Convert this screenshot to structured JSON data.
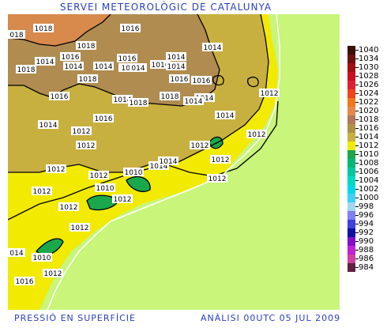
{
  "header": {
    "title": "SERVEI METEOROLÒGIC DE CATALUNYA"
  },
  "footer": {
    "left": "PRESSIÓ EN SUPERFÍCIE",
    "right": "ANÀLISI 00UTC 05 JUL 2009"
  },
  "colors": {
    "sea": "#c8f57a",
    "band_1012": "#f2ea00",
    "band_1014": "#c8b040",
    "band_1016": "#b08c50",
    "band_1018": "#d8894c",
    "band_1010": "#1ba84a",
    "coast": "#ffffff"
  },
  "legend": [
    {
      "label": "1040",
      "color": "#3a1008"
    },
    {
      "label": "1034",
      "color": "#6e1010"
    },
    {
      "label": "1030",
      "color": "#a01010"
    },
    {
      "label": "1028",
      "color": "#c81020"
    },
    {
      "label": "1026",
      "color": "#e02030"
    },
    {
      "label": "1024",
      "color": "#ee4418"
    },
    {
      "label": "1022",
      "color": "#f07818"
    },
    {
      "label": "1020",
      "color": "#e88848"
    },
    {
      "label": "1018",
      "color": "#b07858"
    },
    {
      "label": "1016",
      "color": "#b09048"
    },
    {
      "label": "1014",
      "color": "#c8b040"
    },
    {
      "label": "1012",
      "color": "#f2ea00"
    },
    {
      "label": "1010",
      "color": "#1ba84a"
    },
    {
      "label": "1008",
      "color": "#00b878"
    },
    {
      "label": "1006",
      "color": "#00c8a0"
    },
    {
      "label": "1004",
      "color": "#00d8c0"
    },
    {
      "label": "1002",
      "color": "#00d8e8"
    },
    {
      "label": "1000",
      "color": "#40d0f8"
    },
    {
      "label": "998",
      "color": "#a0d8f0"
    },
    {
      "label": "996",
      "color": "#8080f0"
    },
    {
      "label": "994",
      "color": "#4040e0"
    },
    {
      "label": "992",
      "color": "#1010a8"
    },
    {
      "label": "990",
      "color": "#8010c8"
    },
    {
      "label": "988",
      "color": "#c020d8"
    },
    {
      "label": "986",
      "color": "#d040a0"
    },
    {
      "label": "984",
      "color": "#602040"
    }
  ],
  "isobar_labels": [
    {
      "text": "1018"
    },
    {
      "text": "1016"
    },
    {
      "text": "1018"
    },
    {
      "text": "1016"
    },
    {
      "text": "1014"
    },
    {
      "text": "1018"
    },
    {
      "text": "1014"
    },
    {
      "text": "1014"
    },
    {
      "text": "1016"
    },
    {
      "text": "1014"
    },
    {
      "text": "1016"
    },
    {
      "text": "1014"
    },
    {
      "text": "1018"
    },
    {
      "text": "1016"
    },
    {
      "text": "1016"
    },
    {
      "text": "1014"
    },
    {
      "text": "1012"
    },
    {
      "text": "1016"
    },
    {
      "text": "1014"
    },
    {
      "text": "1018"
    },
    {
      "text": "1018"
    },
    {
      "text": "1014"
    },
    {
      "text": "1016"
    },
    {
      "text": "1014"
    },
    {
      "text": "1014"
    },
    {
      "text": "1012"
    },
    {
      "text": "1012"
    },
    {
      "text": "1014"
    },
    {
      "text": "1012"
    },
    {
      "text": "1012"
    },
    {
      "text": "1010"
    },
    {
      "text": "1014"
    },
    {
      "text": "1012"
    },
    {
      "text": "1012"
    },
    {
      "text": "1012"
    },
    {
      "text": "1010"
    },
    {
      "text": "1012"
    },
    {
      "text": "1012"
    },
    {
      "text": "1012"
    },
    {
      "text": "1010"
    },
    {
      "text": "1012"
    },
    {
      "text": "1012"
    },
    {
      "text": "1012"
    },
    {
      "text": "1016"
    },
    {
      "text": "018"
    },
    {
      "text": "1014"
    },
    {
      "text": "1014"
    },
    {
      "text": "014"
    },
    {
      "text": "014"
    }
  ]
}
